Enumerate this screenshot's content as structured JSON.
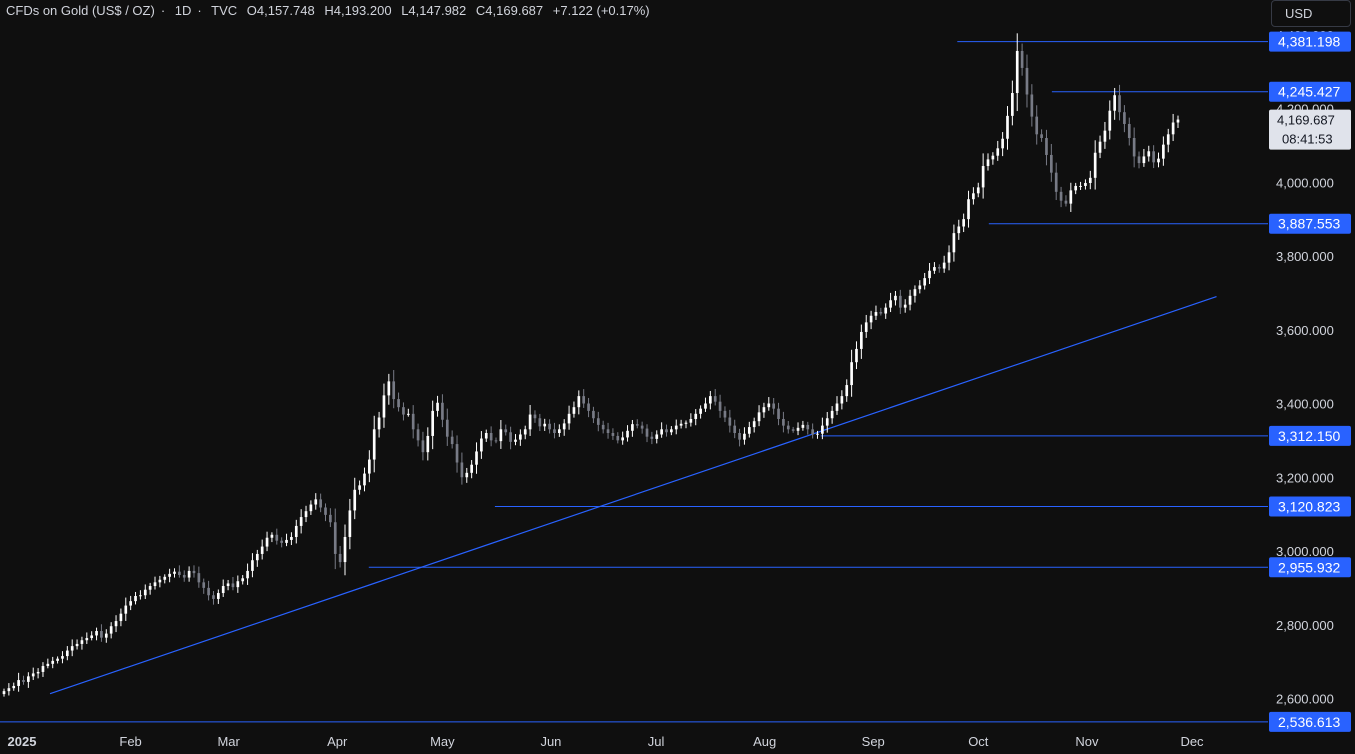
{
  "header": {
    "symbol": "CFDs on Gold (US$ / OZ)",
    "interval": "1D",
    "source": "TVC",
    "open": "O4,157.748",
    "high": "H4,193.200",
    "low": "L4,147.982",
    "close": "C4,169.687",
    "change": "+7.122 (+0.17%)"
  },
  "currency_button": "USD",
  "colors": {
    "background": "#0f0f0f",
    "up_candle": "#ffffff",
    "down_candle": "#787b86",
    "line": "#2962ff",
    "badge": "#2962ff"
  },
  "chart_data": {
    "type": "candlestick",
    "symbol": "CFDs on Gold (US$ / OZ)",
    "interval": "1D",
    "y_range": [
      2520,
      4440
    ],
    "y_ticks": [
      {
        "value": 2600,
        "label": "2,600.000"
      },
      {
        "value": 2800,
        "label": "2,800.000"
      },
      {
        "value": 3000,
        "label": "3,000.000"
      },
      {
        "value": 3200,
        "label": "3,200.000"
      },
      {
        "value": 3400,
        "label": "3,400.000"
      },
      {
        "value": 3600,
        "label": "3,600.000"
      },
      {
        "value": 3800,
        "label": "3,800.000"
      },
      {
        "value": 4000,
        "label": "4,000.000"
      },
      {
        "value": 4200,
        "label": "4,200.000"
      },
      {
        "value": 4400,
        "label": "4,400.000"
      }
    ],
    "x_labels": [
      "2025",
      "Feb",
      "Mar",
      "Apr",
      "May",
      "Jun",
      "Jul",
      "Aug",
      "Sep",
      "Oct",
      "Nov",
      "Dec"
    ],
    "x_label_days": [
      0,
      31,
      59,
      90,
      120,
      151,
      181,
      212,
      243,
      273,
      304,
      334
    ],
    "visible_range_days": [
      0,
      334
    ],
    "closes": [
      2620,
      2628,
      2634,
      2650,
      2645,
      2660,
      2668,
      2672,
      2688,
      2694,
      2702,
      2708,
      2715,
      2730,
      2742,
      2748,
      2758,
      2764,
      2771,
      2783,
      2765,
      2776,
      2796,
      2810,
      2830,
      2852,
      2864,
      2878,
      2880,
      2895,
      2905,
      2915,
      2922,
      2930,
      2938,
      2944,
      2935,
      2928,
      2946,
      2940,
      2915,
      2900,
      2880,
      2870,
      2886,
      2905,
      2912,
      2902,
      2918,
      2926,
      2946,
      2975,
      2992,
      3012,
      3036,
      3044,
      3028,
      3022,
      3030,
      3038,
      3068,
      3092,
      3108,
      3126,
      3140,
      3118,
      3098,
      3078,
      2992,
      2970,
      3038,
      3110,
      3166,
      3178,
      3210,
      3248,
      3330,
      3362,
      3422,
      3460,
      3412,
      3390,
      3370,
      3372,
      3330,
      3300,
      3268,
      3312,
      3380,
      3402,
      3356,
      3310,
      3290,
      3240,
      3200,
      3212,
      3234,
      3270,
      3305,
      3320,
      3300,
      3298,
      3330,
      3322,
      3296,
      3302,
      3316,
      3330,
      3370,
      3360,
      3338,
      3345,
      3330,
      3320,
      3330,
      3346,
      3372,
      3390,
      3420,
      3400,
      3380,
      3360,
      3342,
      3330,
      3320,
      3312,
      3300,
      3308,
      3326,
      3344,
      3340,
      3332,
      3310,
      3304,
      3316,
      3330,
      3322,
      3330,
      3340,
      3345,
      3348,
      3358,
      3372,
      3386,
      3400,
      3420,
      3405,
      3380,
      3362,
      3340,
      3320,
      3302,
      3318,
      3336,
      3352,
      3376,
      3390,
      3400,
      3386,
      3358,
      3340,
      3330,
      3326,
      3334,
      3342,
      3330,
      3316,
      3318,
      3340,
      3360,
      3380,
      3400,
      3420,
      3450,
      3512,
      3548,
      3594,
      3620,
      3638,
      3648,
      3644,
      3660,
      3680,
      3692,
      3660,
      3668,
      3692,
      3710,
      3720,
      3740,
      3760,
      3770,
      3766,
      3782,
      3810,
      3862,
      3880,
      3900,
      3954,
      3970,
      3986,
      4044,
      4062,
      4072,
      4092,
      4118,
      4180,
      4242,
      4356,
      4310,
      4238,
      4178,
      4130,
      4120,
      4074,
      4026,
      3974,
      3950,
      3942,
      3978,
      3990,
      3990,
      3998,
      4012,
      4080,
      4110,
      4140,
      4194,
      4236,
      4190,
      4158,
      4120,
      4070,
      4052,
      4070,
      4084,
      4054,
      4064,
      4102,
      4130,
      4162,
      4170
    ],
    "last_price": {
      "value": 4169.687,
      "label": "4,169.687",
      "countdown": "08:41:53"
    },
    "levels": [
      {
        "value": 4381.198,
        "label": "4,381.198",
        "from_day": 267
      },
      {
        "value": 4245.427,
        "label": "4,245.427",
        "from_day": 294
      },
      {
        "value": 3887.553,
        "label": "3,887.553",
        "from_day": 276
      },
      {
        "value": 3312.15,
        "label": "3,312.150",
        "from_day": 228
      },
      {
        "value": 3120.823,
        "label": "3,120.823",
        "from_day": 135
      },
      {
        "value": 2955.932,
        "label": "2,955.932",
        "from_day": 99
      },
      {
        "value": 2536.613,
        "label": "2,536.613",
        "from_day": 0
      }
    ],
    "trendline": {
      "start": {
        "day": 8,
        "value": 2613
      },
      "end": {
        "day": 341,
        "value": 3690
      }
    }
  }
}
